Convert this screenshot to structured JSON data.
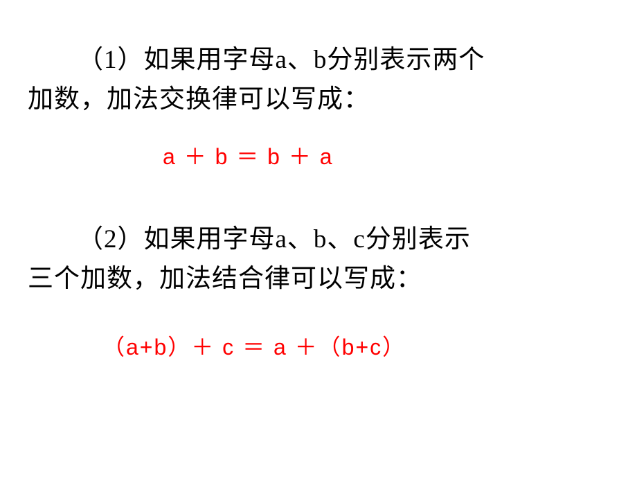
{
  "problem1": {
    "label": "（1）",
    "text_line1": "如果用字母a、b分别表示两个",
    "text_line2": "加数，加法交换律可以写成：",
    "formula": "a ＋ b ＝ b ＋ a"
  },
  "problem2": {
    "label": "（2）",
    "text_line1": "如果用字母a、b、c分别表示",
    "text_line2": "三个加数，加法结合律可以写成：",
    "formula": "（a+b）＋ c ＝ a ＋（b+c）"
  },
  "styling": {
    "background_color": "#ffffff",
    "text_color": "#000000",
    "formula_color": "#ff0000",
    "body_fontsize": 37,
    "formula_fontsize": 32,
    "font_family_body": "SimSun",
    "font_family_formula": "Microsoft YaHei"
  }
}
